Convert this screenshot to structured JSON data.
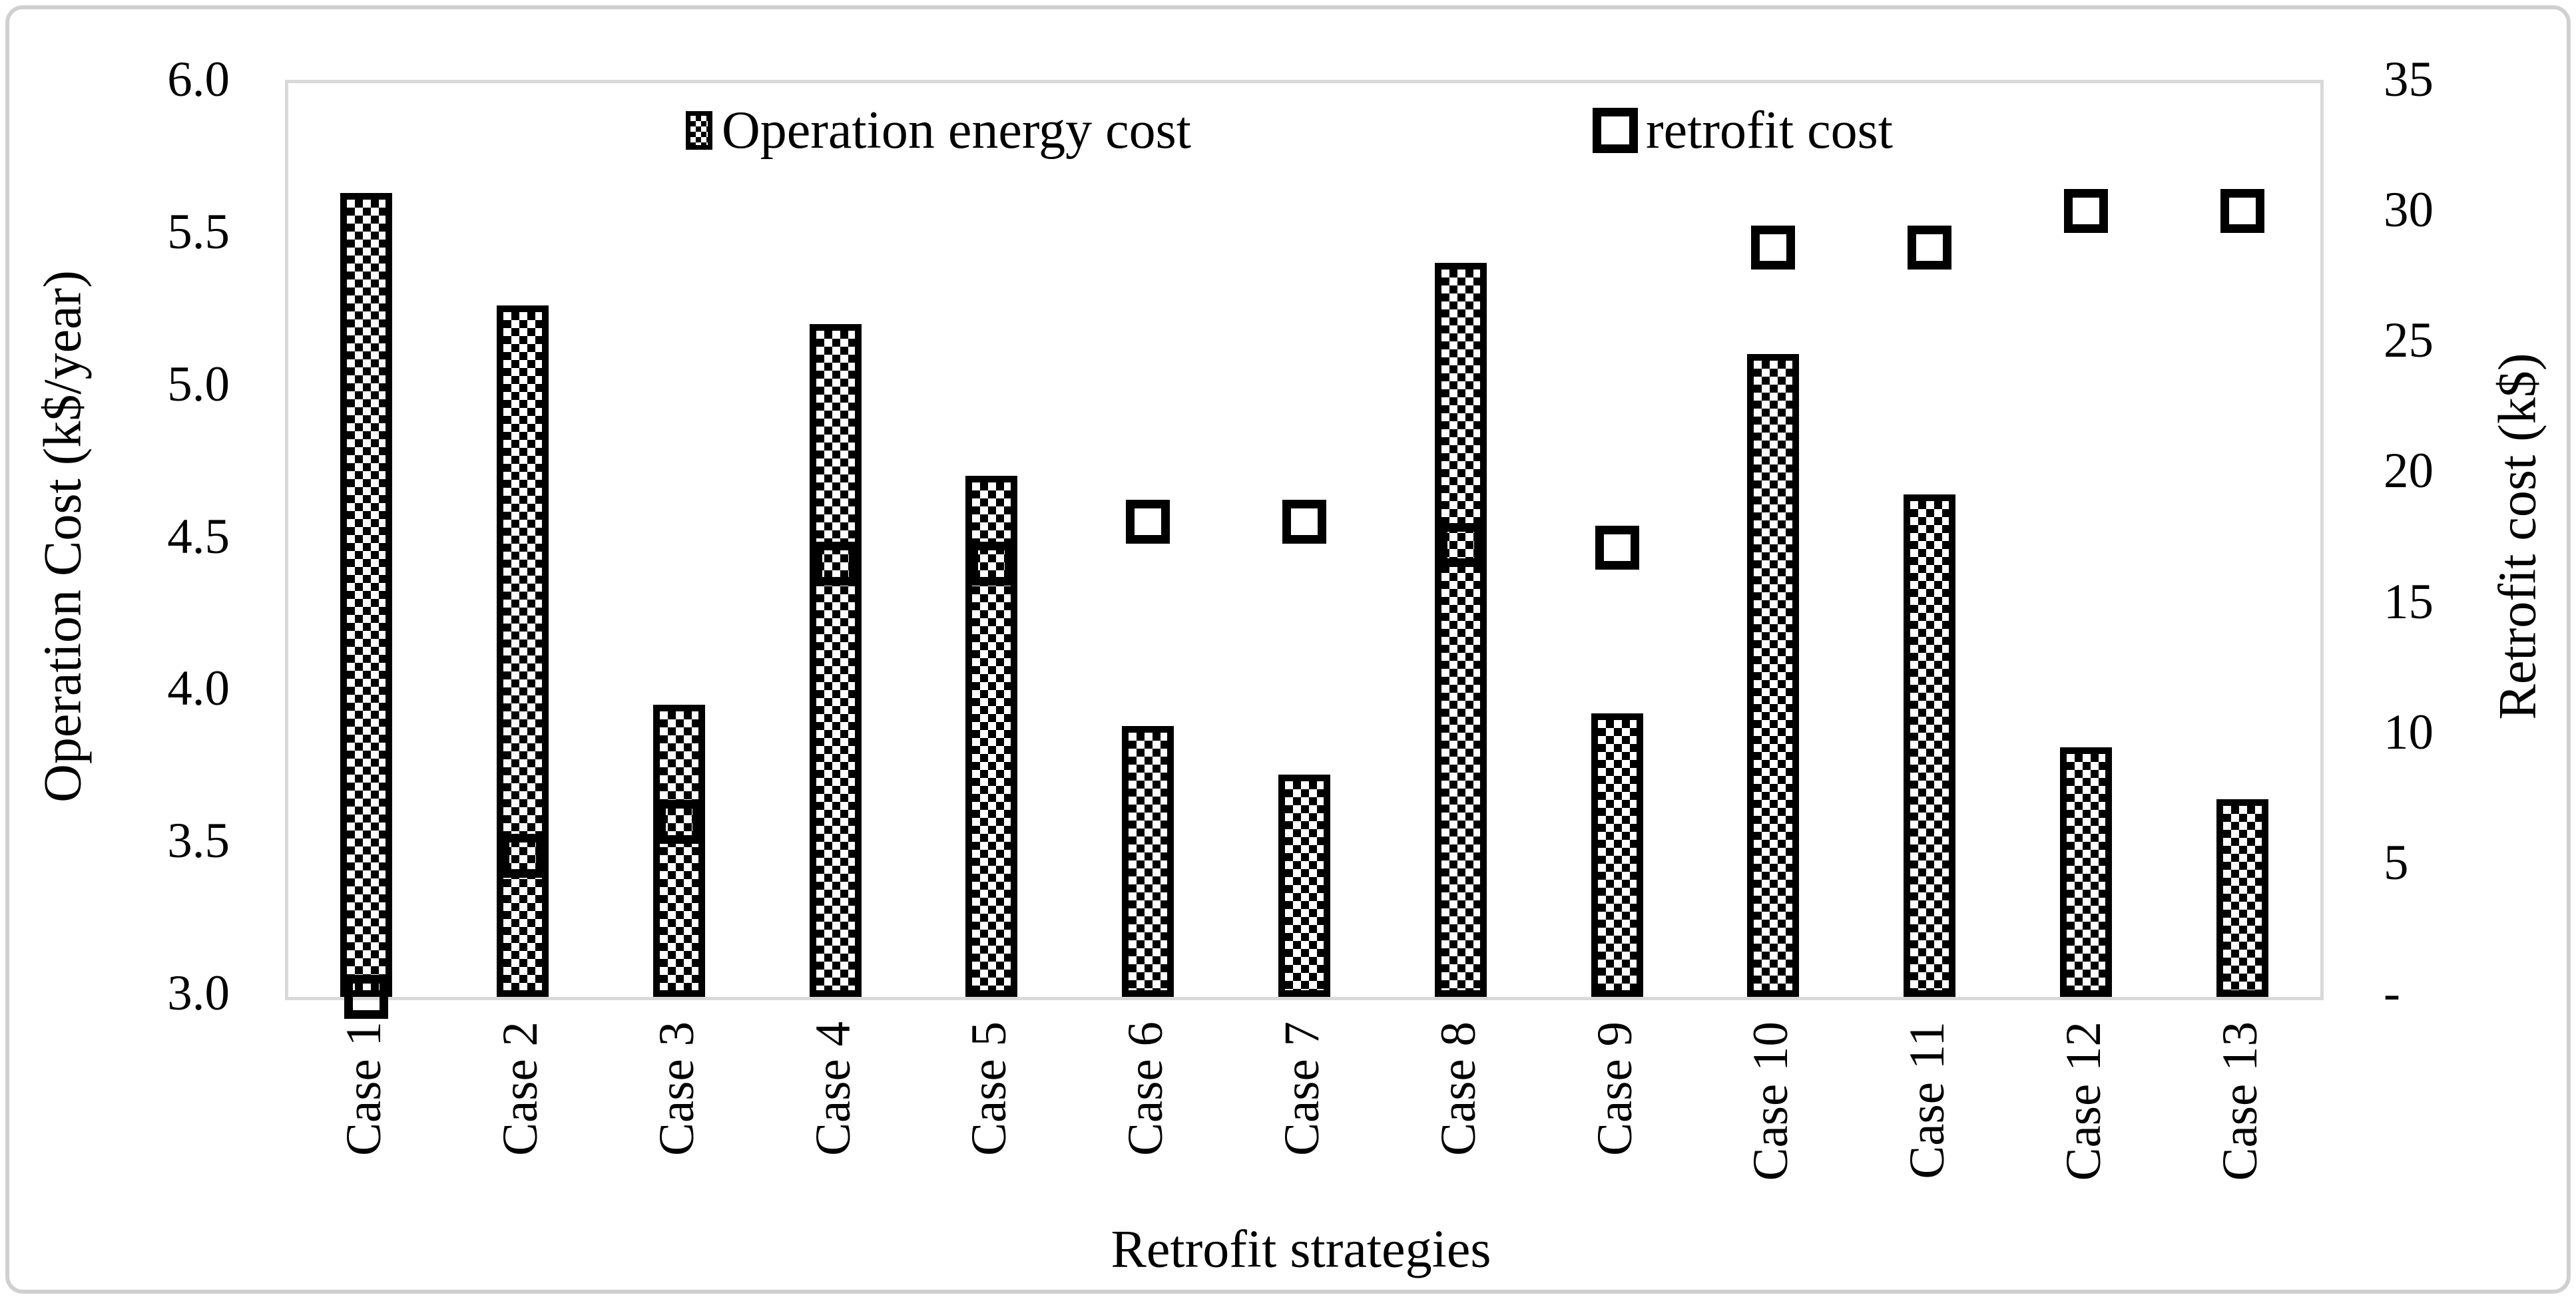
{
  "colors": {
    "bar_pattern": "#000000",
    "marker": "#000000",
    "plot_frame": "#d9d9d9",
    "outer_border": "#d0d0d0",
    "text": "#000000",
    "background": "#ffffff"
  },
  "legend": {
    "items": [
      {
        "label": "Operation energy cost",
        "swatch": "patterned-bar"
      },
      {
        "label": "retrofit cost",
        "swatch": "open-square"
      }
    ]
  },
  "axes": {
    "left": {
      "title": "Operation Cost (k$/year)",
      "tick_labels": [
        "6.0",
        "5.5",
        "5.0",
        "4.5",
        "4.0",
        "3.5",
        "3.0"
      ]
    },
    "right": {
      "title": "Retrofit cost (k$)",
      "tick_labels": [
        "35",
        "30",
        "25",
        "20",
        "15",
        "10",
        "5",
        "-"
      ]
    },
    "x": {
      "title": "Retrofit strategies"
    }
  },
  "chart_data": {
    "type": "bar",
    "categories": [
      "Case 1",
      "Case 2",
      "Case 3",
      "Case 4",
      "Case 5",
      "Case 6",
      "Case 7",
      "Case 8",
      "Case 9",
      "Case 10",
      "Case 11",
      "Case 12",
      "Case 13"
    ],
    "series": [
      {
        "name": "Operation energy cost",
        "type": "bar",
        "axis": "left",
        "values": [
          5.64,
          5.27,
          3.96,
          5.21,
          4.71,
          3.89,
          3.73,
          5.41,
          3.93,
          5.11,
          4.65,
          3.82,
          3.65
        ]
      },
      {
        "name": "retrofit cost",
        "type": "scatter",
        "marker": "open-square",
        "axis": "right",
        "values": [
          0,
          5.4,
          6.7,
          16.6,
          16.6,
          18.2,
          18.2,
          17.3,
          17.2,
          28.7,
          28.7,
          30.1,
          30.1
        ]
      }
    ],
    "xlabel": "Retrofit strategies",
    "ylabel_left": "Operation Cost (k$/year)",
    "ylabel_right": "Retrofit cost (k$)",
    "ylim_left": [
      3.0,
      6.0
    ],
    "ylim_right": [
      0,
      35
    ],
    "ytick_step_left": 0.5,
    "ytick_step_right": 5,
    "grid": false,
    "legend_position": "top-inside"
  }
}
